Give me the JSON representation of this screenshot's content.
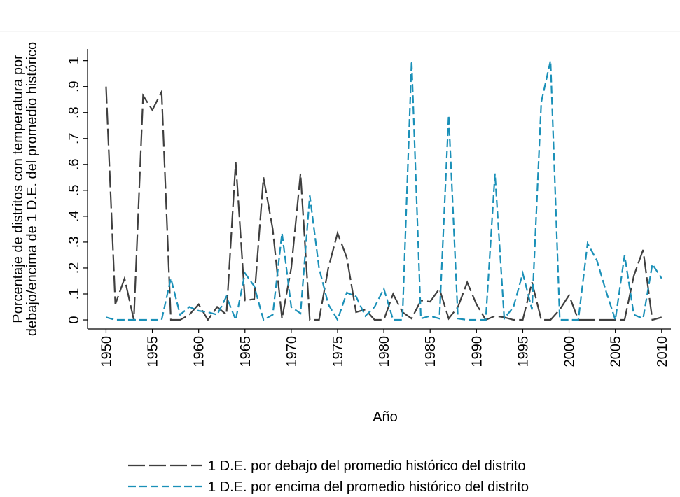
{
  "chart_data": {
    "type": "line",
    "y_label": [
      "Porcentaje de distritos con temperatura por",
      "debajo/encima de 1 D.E. del promedio histórico"
    ],
    "x_label": "Año",
    "x": [
      1950,
      1951,
      1952,
      1953,
      1954,
      1955,
      1956,
      1957,
      1958,
      1959,
      1960,
      1961,
      1962,
      1963,
      1964,
      1965,
      1966,
      1967,
      1968,
      1969,
      1970,
      1971,
      1972,
      1973,
      1974,
      1975,
      1976,
      1977,
      1978,
      1979,
      1980,
      1981,
      1982,
      1983,
      1984,
      1985,
      1986,
      1987,
      1988,
      1989,
      1990,
      1991,
      1992,
      1993,
      1994,
      1995,
      1996,
      1997,
      1998,
      1999,
      2000,
      2001,
      2002,
      2003,
      2004,
      2005,
      2006,
      2007,
      2008,
      2009,
      2010
    ],
    "series": [
      {
        "name": "1 D.E. por debajo del promedio histórico del distrito",
        "color": "#3f3f3f",
        "values": [
          0.9,
          0.06,
          0.16,
          0,
          0.865,
          0.81,
          0.88,
          0,
          0,
          0.02,
          0.06,
          0,
          0.05,
          0.02,
          0.61,
          0.075,
          0.08,
          0.55,
          0.35,
          0.005,
          0.2,
          0.565,
          0,
          0,
          0.2,
          0.335,
          0.24,
          0.03,
          0.04,
          0,
          0,
          0.1,
          0.03,
          0.005,
          0.075,
          0.07,
          0.12,
          0.005,
          0.05,
          0.145,
          0.06,
          0,
          0.015,
          0.01,
          0,
          0,
          0.145,
          0,
          0,
          0.04,
          0.095,
          0,
          0,
          0,
          0,
          0,
          0,
          0.17,
          0.27,
          0,
          0.01
        ]
      },
      {
        "name": "1 D.E. por encima del promedio histórico del distrito",
        "color": "#1a90b8",
        "values": [
          0.01,
          0,
          0,
          0,
          0,
          0,
          0,
          0.16,
          0.02,
          0.05,
          0.035,
          0.03,
          0.02,
          0.09,
          0,
          0.18,
          0.13,
          0,
          0.02,
          0.335,
          0.05,
          0.025,
          0.48,
          0.2,
          0.06,
          0,
          0.105,
          0.09,
          0.015,
          0.05,
          0.12,
          0,
          0,
          1,
          0.005,
          0.015,
          0.005,
          0.79,
          0.005,
          0,
          0,
          0,
          0.565,
          0.005,
          0.05,
          0.18,
          0.04,
          0.84,
          1,
          0,
          0,
          0,
          0.295,
          0.23,
          0.11,
          0,
          0.25,
          0.02,
          0.005,
          0.215,
          0.16
        ]
      }
    ],
    "xlim": [
      1948,
      2011
    ],
    "xticks": [
      1950,
      1955,
      1960,
      1965,
      1970,
      1975,
      1980,
      1985,
      1990,
      1995,
      2000,
      2005,
      2010
    ],
    "ylim": [
      -0.035,
      1.045
    ],
    "yticks": [
      0,
      {
        "value": 0.1,
        "label": ".1"
      },
      {
        "value": 0.2,
        "label": ".2"
      },
      {
        "value": 0.3,
        "label": ".3"
      },
      {
        "value": 0.4,
        "label": ".4"
      },
      {
        "value": 0.5,
        "label": ".5"
      },
      {
        "value": 0.6,
        "label": ".6"
      },
      {
        "value": 0.7,
        "label": ".7"
      },
      {
        "value": 0.8,
        "label": ".8"
      },
      {
        "value": 0.9,
        "label": ".9"
      },
      1
    ],
    "grid": false
  }
}
